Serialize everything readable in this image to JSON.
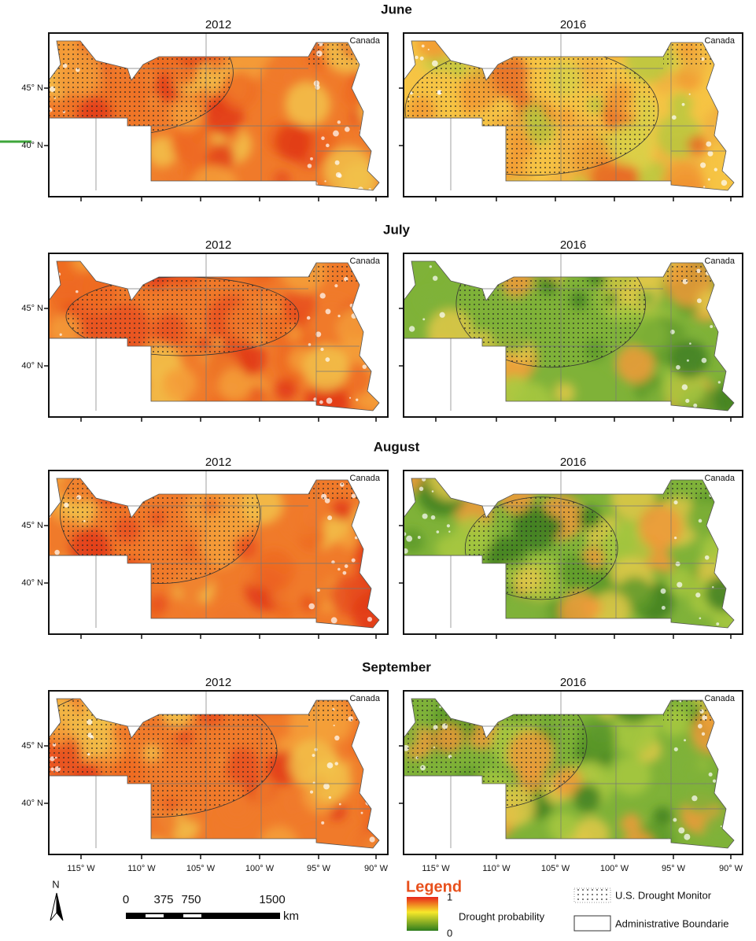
{
  "panels": [
    {
      "month": "June",
      "maps": [
        {
          "year": "2012",
          "label": "Canada"
        },
        {
          "year": "2016",
          "label": "Canada"
        }
      ]
    },
    {
      "month": "July",
      "maps": [
        {
          "year": "2012",
          "label": "Canada"
        },
        {
          "year": "2016",
          "label": "Canada"
        }
      ]
    },
    {
      "month": "August",
      "maps": [
        {
          "year": "2012",
          "label": "Canada"
        },
        {
          "year": "2016",
          "label": "Canada"
        }
      ]
    },
    {
      "month": "September",
      "maps": [
        {
          "year": "2012",
          "label": "Canada"
        },
        {
          "year": "2016",
          "label": "Canada"
        }
      ]
    }
  ],
  "lat_labels": [
    "45° N",
    "40° N"
  ],
  "lon_labels": [
    "115° W",
    "110° W",
    "105° W",
    "100° W",
    "95° W",
    "90° W"
  ],
  "scale_bar": {
    "north": "N",
    "ticks": [
      "0",
      "375",
      "750",
      "1500"
    ],
    "unit": "km"
  },
  "legend": {
    "title": "Legend",
    "high": "1",
    "low": "0",
    "gradient_label": "Drought probability",
    "drought_monitor": "U.S. Drought Monitor",
    "boundaries": "Administrative Boundarie"
  }
}
